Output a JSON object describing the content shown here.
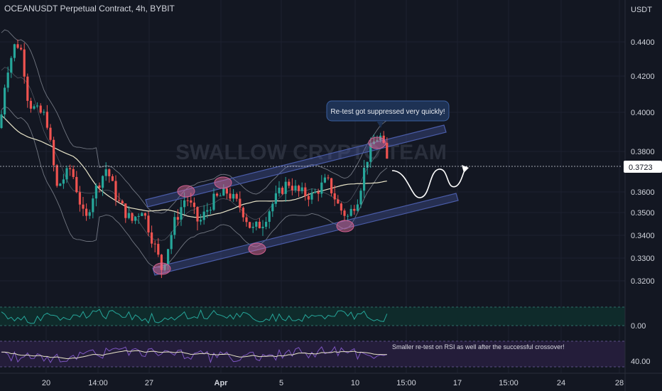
{
  "header": {
    "symbol_title": "OCEANUSDT Perpetual Contract, 4h, BYBIT",
    "currency": "USDT"
  },
  "watermark": "SWALLOW CRYPTO TEAM",
  "colors": {
    "background": "#131722",
    "up": "#26a69a",
    "down": "#ef5350",
    "channel": "#4a5ca8",
    "bands": "#9aa0aa",
    "ma": "#e8e4c8",
    "macd_panel": "#0f2b2b",
    "rsi_panel": "#241d3a"
  },
  "chart_data": {
    "type": "candlestick",
    "price_axis": {
      "ticks": [
        "0.4400",
        "0.4200",
        "0.4000",
        "0.3800",
        "0.3600",
        "0.3500",
        "0.3400",
        "0.3300",
        "0.3200"
      ],
      "tick_values": [
        0.44,
        0.42,
        0.4,
        0.38,
        0.36,
        0.35,
        0.34,
        0.33,
        0.32
      ],
      "current_price": "0.3723"
    },
    "time_axis": {
      "labels": [
        "20",
        "14:00",
        "27",
        "Apr",
        "5",
        "10",
        "15:00",
        "17",
        "15:00",
        "24",
        "28"
      ]
    },
    "indicator_axes": {
      "macd_label": "0.00",
      "rsi_label": "40.00"
    },
    "annotations": {
      "callout": "Re-test got suppressed very quickly!",
      "rsi_note": "Smaller re-test on RSI as well after the successful crossover!"
    }
  }
}
